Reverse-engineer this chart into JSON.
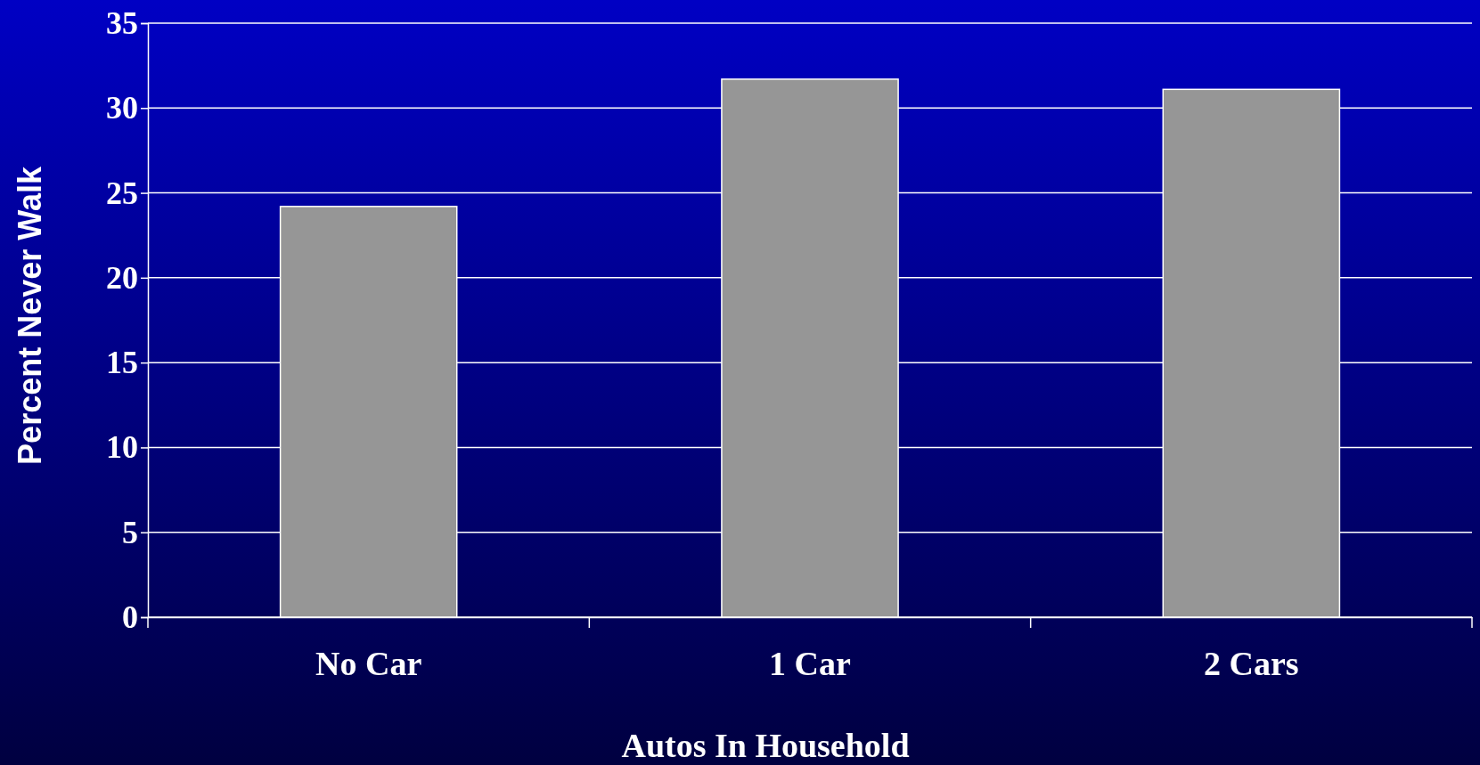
{
  "chart_data": {
    "type": "bar",
    "xlabel": "Autos In Household",
    "ylabel": "Percent Never Walk",
    "categories": [
      "No Car",
      "1 Car",
      "2 Cars"
    ],
    "values": [
      24.2,
      31.7,
      31.1
    ],
    "color": "#969696",
    "ylim": [
      0,
      35
    ],
    "yticks": [
      0,
      5,
      10,
      15,
      20,
      25,
      30,
      35
    ],
    "grid": "y"
  }
}
